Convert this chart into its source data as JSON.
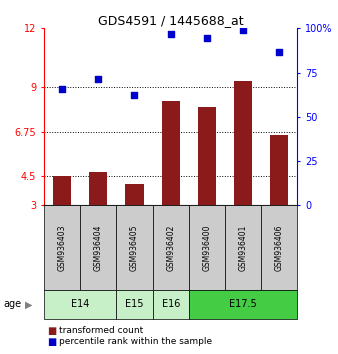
{
  "title": "GDS4591 / 1445688_at",
  "samples": [
    "GSM936403",
    "GSM936404",
    "GSM936405",
    "GSM936402",
    "GSM936400",
    "GSM936401",
    "GSM936406"
  ],
  "bar_values": [
    4.5,
    4.7,
    4.1,
    8.3,
    8.0,
    9.3,
    6.6
  ],
  "scatter_values": [
    8.9,
    9.4,
    8.6,
    11.7,
    11.5,
    11.9,
    10.8
  ],
  "bar_color": "#8B1A1A",
  "scatter_color": "#0000CD",
  "age_groups": [
    {
      "label": "E14",
      "start": 0,
      "end": 1,
      "color": "#c8f0c8"
    },
    {
      "label": "E15",
      "start": 2,
      "end": 2,
      "color": "#c8f0c8"
    },
    {
      "label": "E16",
      "start": 3,
      "end": 3,
      "color": "#c8f0c8"
    },
    {
      "label": "E17.5",
      "start": 4,
      "end": 6,
      "color": "#44cc44"
    }
  ],
  "ylim_left": [
    3,
    12
  ],
  "ylim_right": [
    0,
    100
  ],
  "yticks_left": [
    3,
    4.5,
    6.75,
    9,
    12
  ],
  "yticks_right": [
    0,
    25,
    50,
    75,
    100
  ],
  "ytick_labels_right": [
    "0",
    "25",
    "50",
    "75",
    "100%"
  ],
  "hlines": [
    4.5,
    6.75,
    9
  ],
  "background_color": "#ffffff",
  "sample_box_color": "#cccccc",
  "fig_width": 3.38,
  "fig_height": 3.54,
  "dpi": 100
}
